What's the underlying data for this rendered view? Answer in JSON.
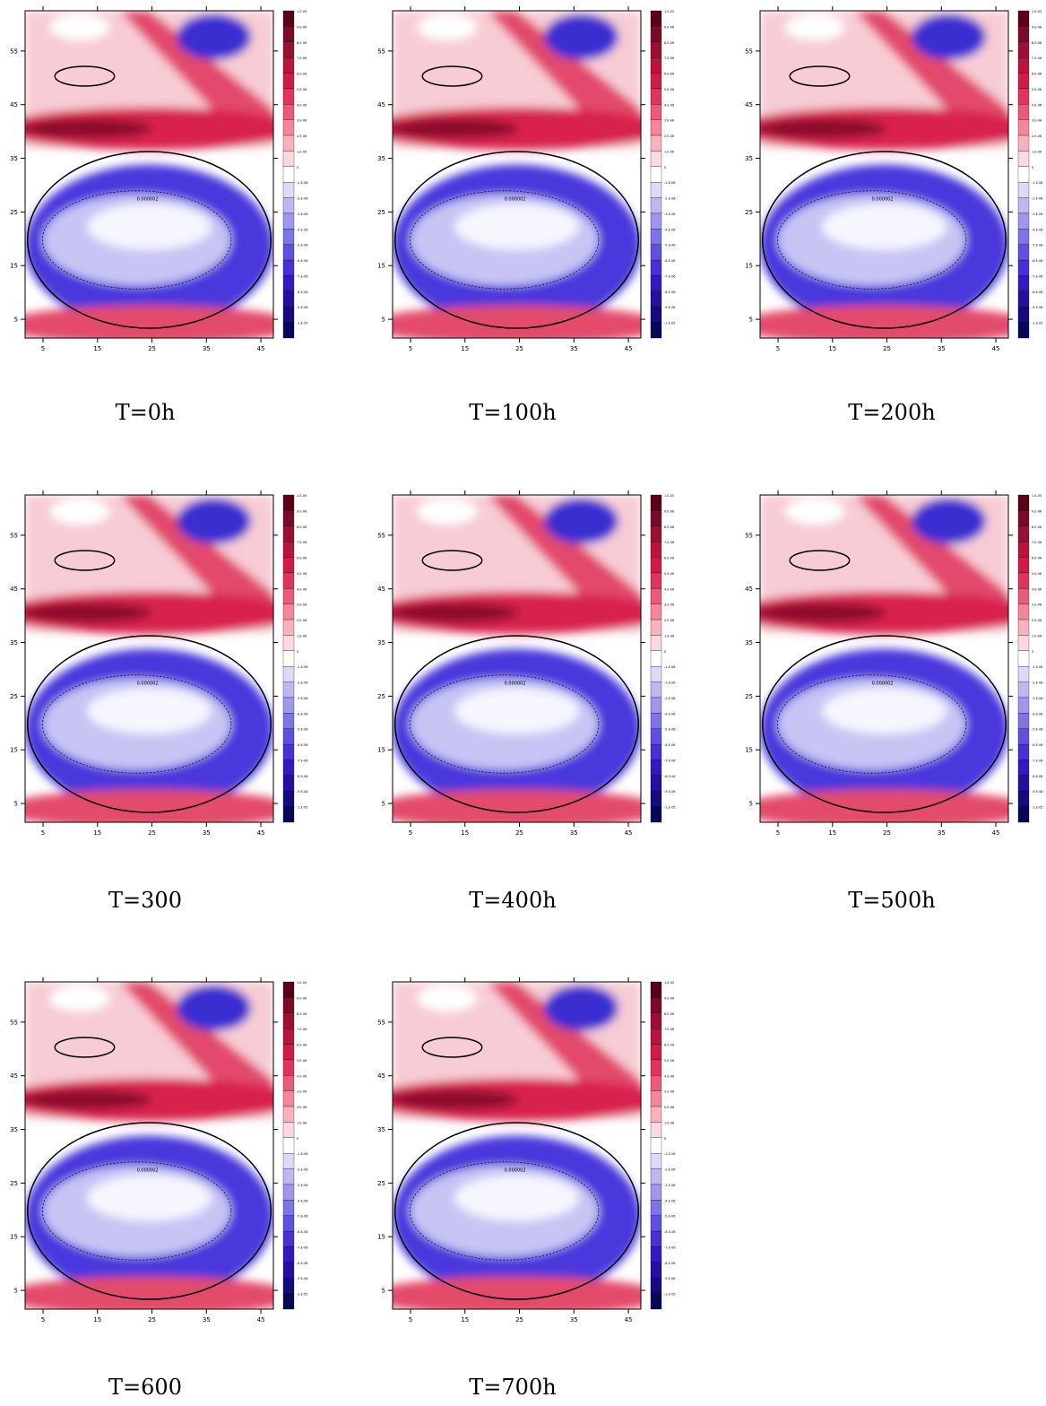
{
  "axes": {
    "xlim": [
      1.7,
      47.3
    ],
    "ylim": [
      1.5,
      62.5
    ],
    "xticks": [
      5,
      15,
      25,
      35,
      45
    ],
    "yticks": [
      5,
      15,
      25,
      35,
      45,
      55
    ]
  },
  "colorbar": {
    "labels": [
      "1.E-05",
      "9.E-06",
      "8.E-06",
      "7.E-06",
      "6.E-06",
      "5.E-06",
      "4.E-06",
      "3.E-06",
      "2.E-06",
      "1.E-06",
      "0",
      "-1.E-06",
      "-2.E-06",
      "-3.E-06",
      "-4.E-06",
      "-5.E-06",
      "-6.E-06",
      "-7.E-06",
      "-8.E-06",
      "-9.E-06",
      "-1.E-05"
    ]
  },
  "contour_label": "0.000002",
  "panels": [
    {
      "caption": "T=0h"
    },
    {
      "caption": "T=100h"
    },
    {
      "caption": "T=200h"
    },
    {
      "caption": "T=300"
    },
    {
      "caption": "T=400h"
    },
    {
      "caption": "T=500h"
    },
    {
      "caption": "T=600"
    },
    {
      "caption": "T=700h"
    }
  ]
}
